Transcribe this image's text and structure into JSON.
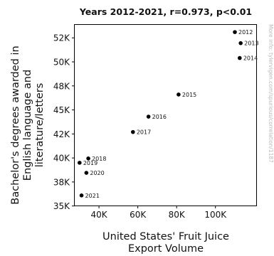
{
  "chart_data": {
    "type": "scatter",
    "title": "Years 2012-2021, r=0.973, p<0.01",
    "xlabel": [
      "United States' Fruit Juice",
      "Export Volume"
    ],
    "ylabel": [
      "Bachelor's degrees awarded in",
      "English language and",
      "literature/letters"
    ],
    "side_note": "More info: tylervigen.com/spurious/correlation/1187",
    "xlim": [
      27500,
      121000
    ],
    "ylim": [
      35050,
      53850
    ],
    "x_ticks": [
      {
        "value": 40000,
        "label": "40K"
      },
      {
        "value": 60000,
        "label": "60K"
      },
      {
        "value": 80000,
        "label": "80K"
      },
      {
        "value": 100000,
        "label": "100K"
      }
    ],
    "y_ticks": [
      {
        "value": 35000,
        "label": "35K"
      },
      {
        "value": 37500,
        "label": "38K"
      },
      {
        "value": 40000,
        "label": "40K"
      },
      {
        "value": 42500,
        "label": "42K"
      },
      {
        "value": 45000,
        "label": "45K"
      },
      {
        "value": 47500,
        "label": "48K"
      },
      {
        "value": 50000,
        "label": "50K"
      },
      {
        "value": 52500,
        "label": "52K"
      }
    ],
    "points": [
      {
        "label": "2012",
        "x": 110000,
        "y": 53100
      },
      {
        "label": "2013",
        "x": 113000,
        "y": 51950
      },
      {
        "label": "2014",
        "x": 112500,
        "y": 50400
      },
      {
        "label": "2015",
        "x": 81000,
        "y": 46600
      },
      {
        "label": "2016",
        "x": 65500,
        "y": 44300
      },
      {
        "label": "2017",
        "x": 57500,
        "y": 42700
      },
      {
        "label": "2018",
        "x": 34500,
        "y": 39950
      },
      {
        "label": "2019",
        "x": 30000,
        "y": 39500
      },
      {
        "label": "2020",
        "x": 33500,
        "y": 38450
      },
      {
        "label": "2021",
        "x": 31000,
        "y": 36100
      }
    ]
  }
}
